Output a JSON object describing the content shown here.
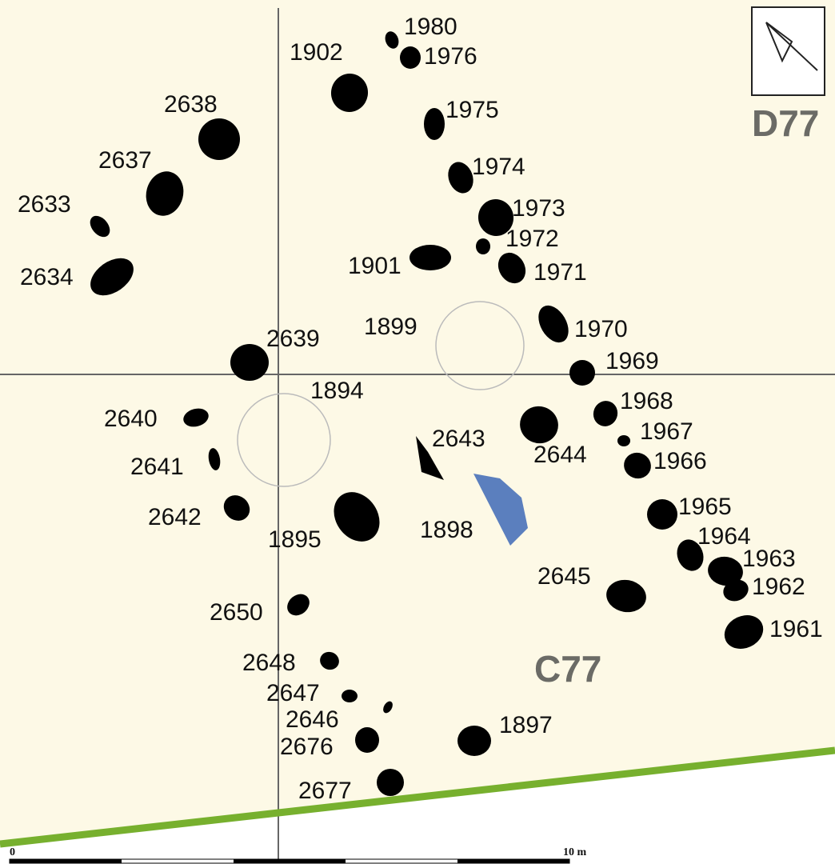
{
  "features": [
    "1980",
    "1976",
    "1902",
    "1975",
    "2638",
    "2637",
    "1974",
    "2633",
    "1973",
    "1972",
    "1901",
    "1971",
    "2634",
    "1899",
    "1970",
    "2639",
    "1969",
    "1894",
    "1968",
    "2640",
    "1967",
    "2643",
    "2644",
    "1966",
    "2641",
    "1898",
    "1965",
    "2642",
    "1895",
    "1964",
    "1963",
    "2645",
    "1962",
    "2650",
    "1961",
    "2648",
    "2647",
    "2646",
    "2676",
    "1897",
    "2677"
  ],
  "squares": [
    "D77",
    "C77"
  ],
  "scale": {
    "start": "0",
    "end": "10 m"
  }
}
